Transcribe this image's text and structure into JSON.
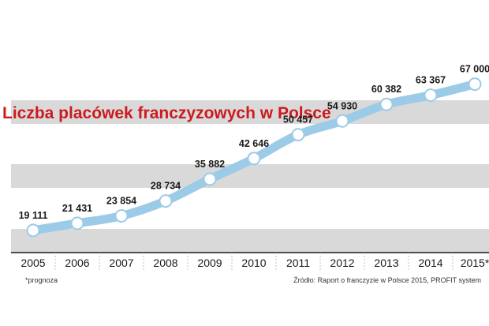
{
  "chart_data": {
    "type": "line",
    "title": "Liczba placówek franczyzowych w Polsce",
    "x": [
      "2005",
      "2006",
      "2007",
      "2008",
      "2009",
      "2010",
      "2011",
      "2012",
      "2013",
      "2014",
      "2015*"
    ],
    "series": [
      {
        "values": [
          19111,
          21431,
          23854,
          28734,
          35882,
          42646,
          50457,
          54930,
          60382,
          63367,
          67000
        ],
        "labels": [
          "19 111",
          "21 431",
          "23 854",
          "28 734",
          "35 882",
          "42 646",
          "50 457",
          "54 930",
          "60 382",
          "63 367",
          "67 000"
        ]
      }
    ],
    "ylim": [
      17000,
      70000
    ],
    "grid": "horizontal-bands",
    "footnote": "*prognoza",
    "source": "Źródło: Raport o franczyzie w Polsce 2015, PROFIT system",
    "colors": {
      "line": "#9ccbe8",
      "marker": "#ffffff",
      "band": "#d9d9d9",
      "title": "#cc1a1f",
      "axis": "#1a1a1a"
    }
  }
}
